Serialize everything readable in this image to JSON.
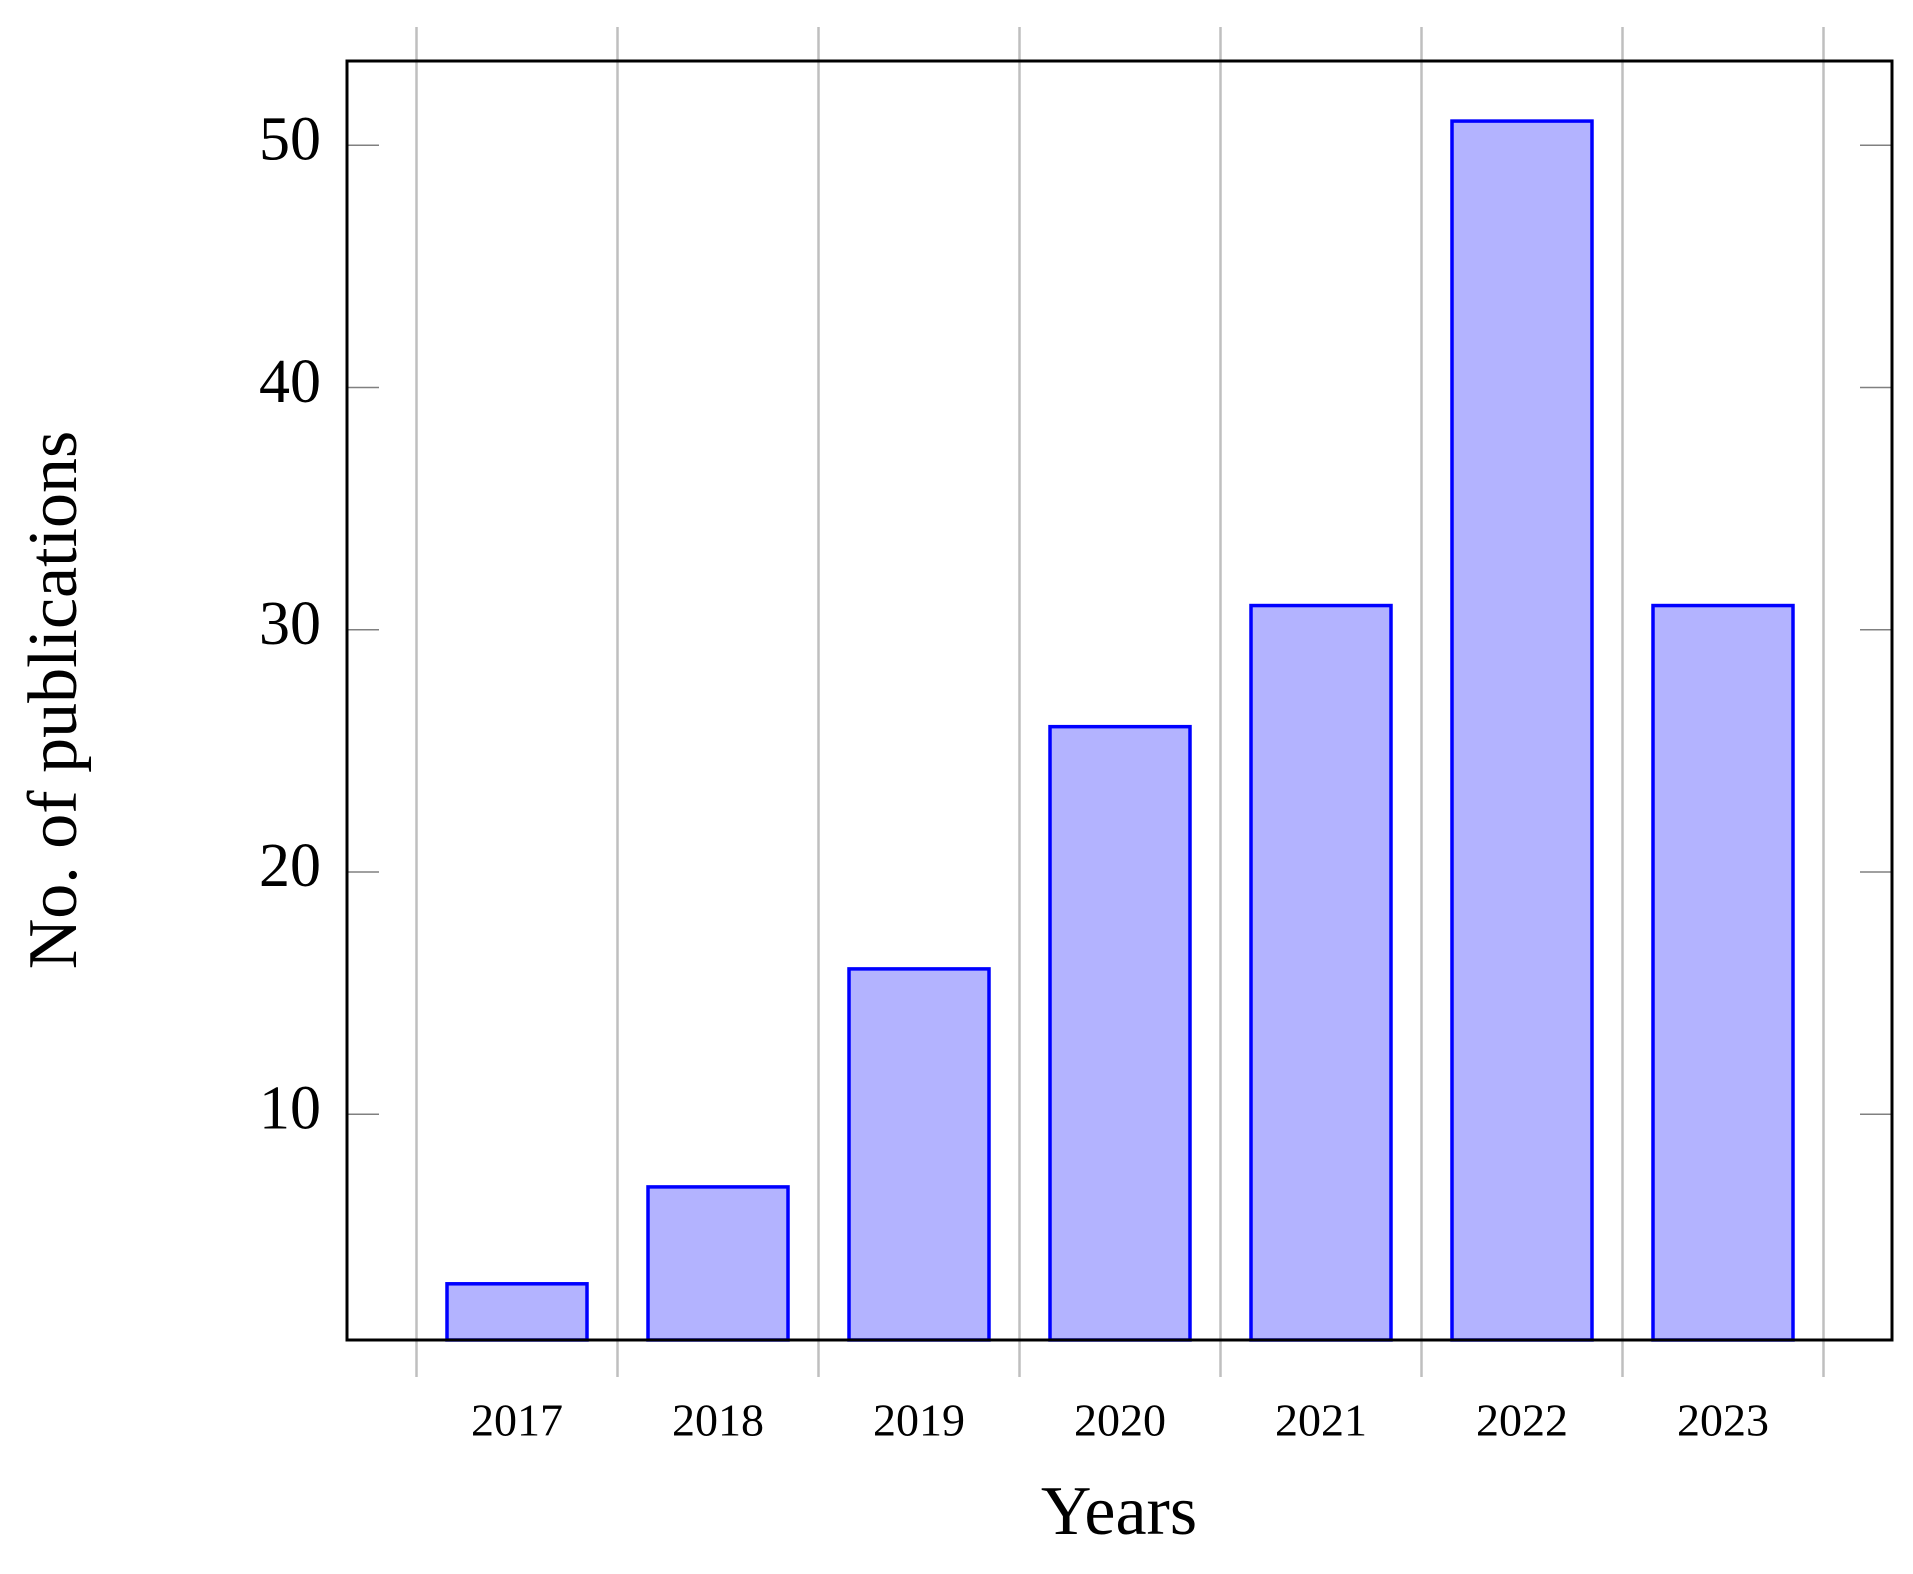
{
  "chart_data": {
    "type": "bar",
    "x_label": "Years",
    "y_label": "No. of publications",
    "categories": [
      "2017",
      "2018",
      "2019",
      "2020",
      "2021",
      "2022",
      "2023"
    ],
    "values": [
      3,
      7,
      16,
      26,
      31,
      51,
      31
    ],
    "color": "#b3b3ff",
    "edge_color": "#0000ff",
    "ylim": [
      0.68,
      53.48
    ],
    "yticks": [
      10,
      20,
      30,
      40,
      50
    ],
    "grid": true
  }
}
